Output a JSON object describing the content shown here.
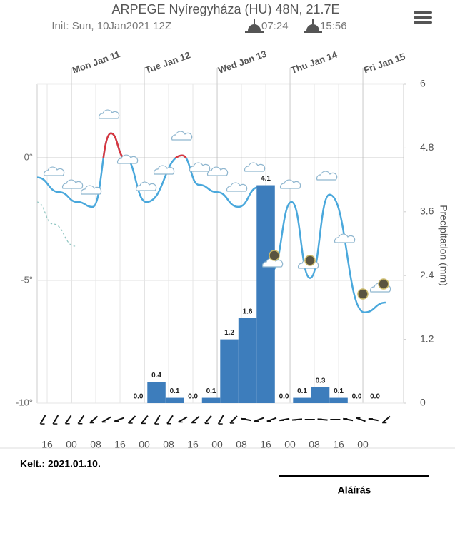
{
  "chart_data": {
    "type": "meteogram",
    "title": "ARPEGE Nyíregyháza (HU) 48N, 21.7E",
    "subtitle": "Init: Sun, 10Jan2021 12Z",
    "sunrise": "07:24",
    "sunset": "15:56",
    "y2label": "Precipitation (mm)",
    "xlim": [
      -11.3,
      109.4
    ],
    "xticks": [
      {
        "value": -8,
        "label": "16"
      },
      {
        "value": 0,
        "label": "00"
      },
      {
        "value": 8,
        "label": "08"
      },
      {
        "value": 16,
        "label": "16"
      },
      {
        "value": 24,
        "label": "00"
      },
      {
        "value": 32,
        "label": "08"
      },
      {
        "value": 40,
        "label": "16"
      },
      {
        "value": 48,
        "label": "00"
      },
      {
        "value": 56,
        "label": "08"
      },
      {
        "value": 64,
        "label": "16"
      },
      {
        "value": 72,
        "label": "00"
      },
      {
        "value": 80,
        "label": "08"
      },
      {
        "value": 88,
        "label": "16"
      },
      {
        "value": 96,
        "label": "00"
      }
    ],
    "day_ticks": [
      {
        "value": 0,
        "label": "Mon Jan 11"
      },
      {
        "value": 24,
        "label": "Tue Jan 12"
      },
      {
        "value": 48,
        "label": "Wed Jan 13"
      },
      {
        "value": 72,
        "label": "Thu Jan 14"
      },
      {
        "value": 96,
        "label": "Fri Jan 15"
      }
    ],
    "ylim": [
      -10,
      3
    ],
    "yticks": [
      {
        "value": 0,
        "label": "0°"
      },
      {
        "value": -5,
        "label": "-5°"
      },
      {
        "value": -10,
        "label": "-10°"
      }
    ],
    "y2lim": [
      0,
      6
    ],
    "y2ticks": [
      0,
      1.2,
      2.4,
      3.6,
      4.8,
      6
    ],
    "series": [
      {
        "color": "#4aa8dc",
        "warm_color": "#d9363e",
        "x": [
          -11.3,
          -4,
          2,
          7,
          13,
          17.6,
          24.7,
          36.5,
          42,
          48,
          55,
          61.6,
          63,
          66,
          72.5,
          78.6,
          85,
          96.5,
          103.5
        ],
        "values": [
          -0.8,
          -1.4,
          -1.8,
          -2.0,
          1.0,
          0,
          -1.8,
          0.1,
          -1.1,
          -1.4,
          -2.0,
          -1.2,
          -1.2,
          -4.6,
          -1.8,
          -4.9,
          -1.5,
          -6.3,
          -5.9
        ]
      },
      {
        "color": "#8cc4c0",
        "dashed": true,
        "x": [
          -11.3,
          -6,
          1.2
        ],
        "values": [
          -1.8,
          -2.7,
          -3.6
        ]
      },
      {
        "type": "bar",
        "axis": "y2",
        "color": "#3d7dbc",
        "bins": [
          19,
          25,
          31,
          37,
          43,
          49,
          55,
          61,
          67,
          73,
          79,
          85,
          91,
          97,
          103
        ],
        "values": [
          0,
          0.4,
          0.1,
          0,
          0.1,
          1.2,
          1.6,
          4.1,
          0,
          0.1,
          0.3,
          0.1,
          0,
          0
        ],
        "value_labels": [
          "0.0",
          "0.4",
          "0.1",
          "0.0",
          "0.1",
          "1.2",
          "1.6",
          "4.1",
          "0.0",
          "0.1",
          "0.3",
          "0.1",
          "0.0",
          "0.0"
        ]
      }
    ],
    "grid": true,
    "date_label": "Kelt.: 2021.01.10.",
    "signature_label": "Aláírás"
  }
}
